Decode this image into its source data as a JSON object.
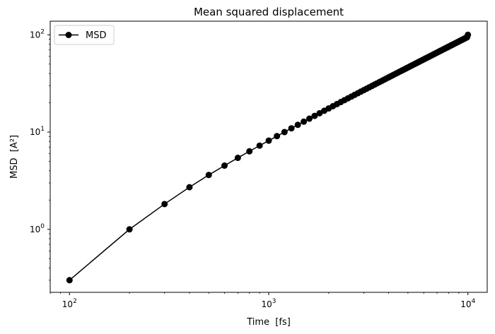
{
  "chart_data": {
    "type": "line",
    "title": "Mean squared displacement",
    "xlabel": "Time  [fs]",
    "ylabel": "MSD  [A²]",
    "xscale": "log",
    "yscale": "log",
    "xlim": [
      80,
      12500
    ],
    "ylim": [
      0.225,
      138
    ],
    "grid": false,
    "legend_position": "top-left",
    "x_ticks": [
      {
        "value": 100,
        "base": "10",
        "exp": "2"
      },
      {
        "value": 1000,
        "base": "10",
        "exp": "3"
      },
      {
        "value": 10000,
        "base": "10",
        "exp": "4"
      }
    ],
    "y_ticks": [
      {
        "value": 1,
        "base": "10",
        "exp": "0"
      },
      {
        "value": 10,
        "base": "10",
        "exp": "1"
      },
      {
        "value": 100,
        "base": "10",
        "exp": "2"
      }
    ],
    "series": [
      {
        "name": "MSD",
        "color": "#000000",
        "marker": "circle",
        "x": [
          100,
          200,
          300,
          400,
          500,
          600,
          700,
          800,
          900,
          1000,
          1100,
          1200,
          1300,
          1400,
          1500,
          1600,
          1700,
          1800,
          1900,
          2000,
          2100,
          2200,
          2300,
          2400,
          2500,
          2600,
          2700,
          2800,
          2900,
          3000,
          3100,
          3200,
          3300,
          3400,
          3500,
          3600,
          3700,
          3800,
          3900,
          4000,
          4100,
          4200,
          4300,
          4400,
          4500,
          4600,
          4700,
          4800,
          4900,
          5000,
          5100,
          5200,
          5300,
          5400,
          5500,
          5600,
          5700,
          5800,
          5900,
          6000,
          6100,
          6200,
          6300,
          6400,
          6500,
          6600,
          6700,
          6800,
          6900,
          7000,
          7100,
          7200,
          7300,
          7400,
          7500,
          7600,
          7700,
          7800,
          7900,
          8000,
          8100,
          8200,
          8300,
          8400,
          8500,
          8600,
          8700,
          8800,
          8900,
          9000,
          9100,
          9200,
          9300,
          9400,
          9500,
          9600,
          9700,
          9800,
          9900,
          10000
        ],
        "y": [
          0.3,
          1.0,
          1.82,
          2.71,
          3.62,
          4.52,
          5.43,
          6.34,
          7.25,
          8.16,
          9.08,
          10.0,
          10.93,
          11.86,
          12.79,
          13.73,
          14.67,
          15.61,
          16.56,
          17.5,
          18.45,
          19.39,
          20.34,
          21.28,
          22.23,
          23.17,
          24.12,
          25.07,
          26.02,
          26.97,
          27.92,
          28.87,
          29.82,
          30.78,
          31.73,
          32.69,
          33.64,
          34.6,
          35.56,
          36.52,
          37.48,
          38.44,
          39.4,
          40.37,
          41.33,
          42.3,
          43.26,
          44.23,
          45.19,
          46.16,
          47.13,
          48.1,
          49.07,
          50.04,
          51.01,
          51.98,
          52.96,
          53.93,
          54.9,
          55.88,
          56.85,
          57.83,
          58.8,
          59.78,
          60.76,
          61.74,
          62.71,
          63.69,
          64.67,
          65.65,
          66.63,
          67.61,
          68.6,
          69.58,
          70.56,
          71.54,
          72.53,
          73.51,
          74.5,
          75.48,
          76.47,
          77.45,
          78.44,
          79.43,
          80.42,
          81.41,
          82.39,
          83.38,
          84.37,
          85.36,
          86.36,
          87.35,
          88.34,
          89.33,
          90.32,
          91.32,
          92.31,
          93.31,
          94.3,
          100.0
        ]
      }
    ]
  }
}
